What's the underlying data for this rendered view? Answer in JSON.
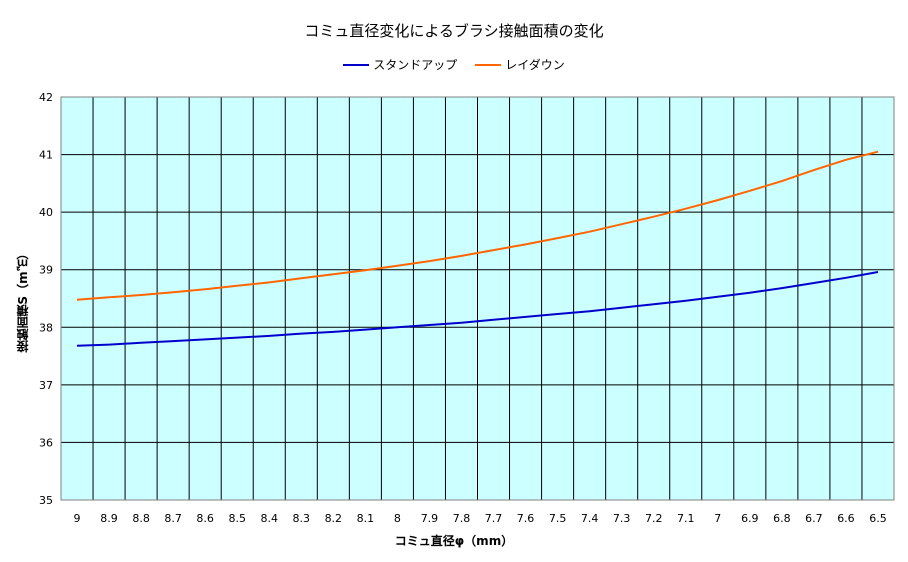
{
  "chart_data": {
    "type": "line",
    "title": "コミュ直径変化によるブラシ接触面積の変化",
    "xlabel": "コミュ直径φ（mm）",
    "ylabel": "接触面積S（m㎡）",
    "categories": [
      "9",
      "8.9",
      "8.8",
      "8.7",
      "8.6",
      "8.5",
      "8.4",
      "8.3",
      "8.2",
      "8.1",
      "8",
      "7.9",
      "7.8",
      "7.7",
      "7.6",
      "7.5",
      "7.4",
      "7.3",
      "7.2",
      "7.1",
      "7",
      "6.9",
      "6.8",
      "6.7",
      "6.6",
      "6.5"
    ],
    "ylim": [
      35,
      42
    ],
    "yticks": [
      "35",
      "36",
      "37",
      "38",
      "39",
      "40",
      "41",
      "42"
    ],
    "grid": true,
    "plot_background": "#ccffff",
    "legend_position": "top",
    "series": [
      {
        "name": "スタンドアップ",
        "color": "#0000cc",
        "values": [
          37.68,
          37.7,
          37.73,
          37.76,
          37.79,
          37.82,
          37.85,
          37.89,
          37.92,
          37.96,
          38.0,
          38.04,
          38.08,
          38.13,
          38.18,
          38.23,
          38.28,
          38.34,
          38.4,
          38.46,
          38.53,
          38.6,
          38.68,
          38.77,
          38.86,
          38.96
        ]
      },
      {
        "name": "レイダウン",
        "color": "#ff6600",
        "values": [
          38.48,
          38.52,
          38.56,
          38.61,
          38.66,
          38.72,
          38.78,
          38.85,
          38.92,
          38.99,
          39.07,
          39.15,
          39.24,
          39.34,
          39.44,
          39.55,
          39.66,
          39.79,
          39.92,
          40.06,
          40.21,
          40.37,
          40.54,
          40.73,
          40.91,
          41.05
        ]
      }
    ]
  }
}
